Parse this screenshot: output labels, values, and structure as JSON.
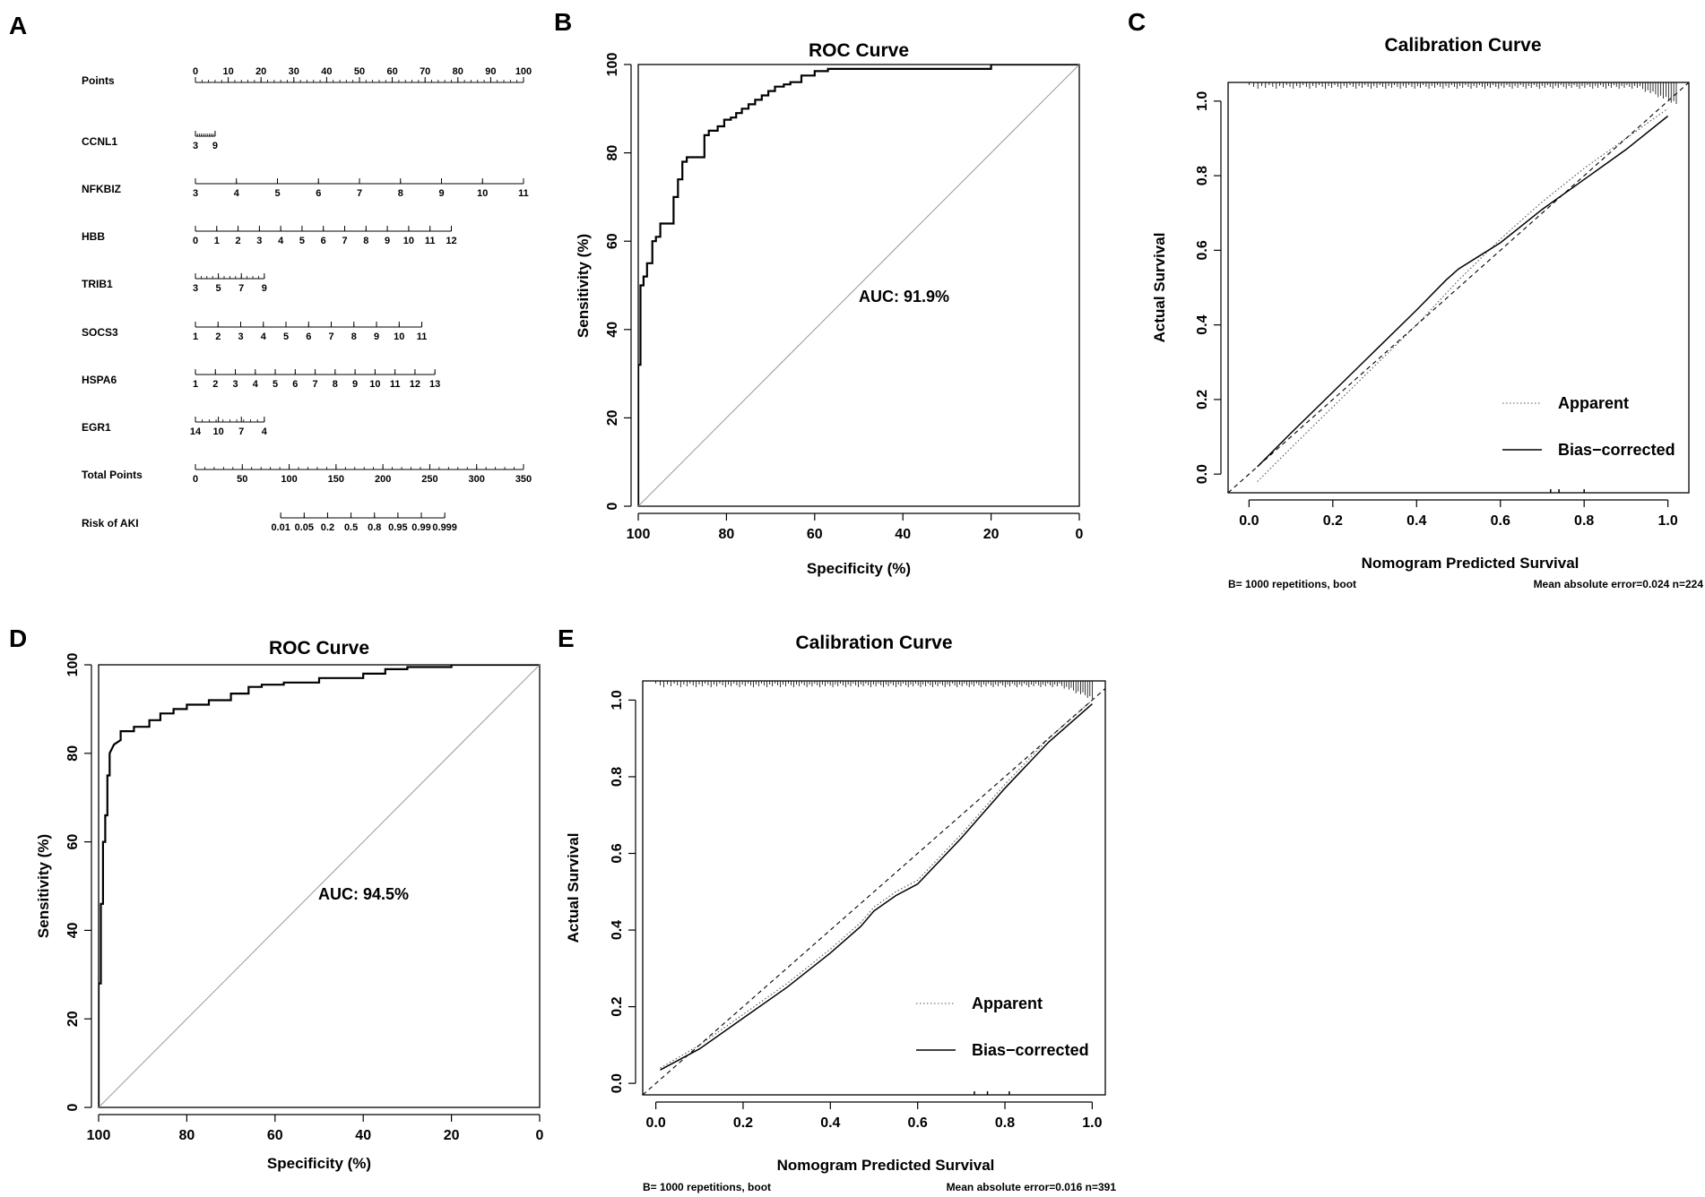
{
  "panels": {
    "A": {
      "label": "A"
    },
    "B": {
      "label": "B"
    },
    "C": {
      "label": "C"
    },
    "D": {
      "label": "D"
    },
    "E": {
      "label": "E"
    }
  },
  "chart_data": [
    {
      "type": "nomogram",
      "panel": "A",
      "rows": [
        {
          "name": "Points",
          "labels": [
            "0",
            "10",
            "20",
            "30",
            "40",
            "50",
            "60",
            "70",
            "80",
            "90",
            "100"
          ],
          "start": 0,
          "end": 100,
          "minor": 50
        },
        {
          "name": "CCNL1",
          "labels": [
            "3",
            "9"
          ],
          "start": 0,
          "end": 6,
          "minor": 10
        },
        {
          "name": "NFKBIZ",
          "labels": [
            "3",
            "4",
            "5",
            "6",
            "7",
            "8",
            "9",
            "10",
            "11"
          ],
          "start": 0,
          "end": 100,
          "minor": 8
        },
        {
          "name": "HBB",
          "labels": [
            "0",
            "1",
            "2",
            "3",
            "4",
            "5",
            "6",
            "7",
            "8",
            "9",
            "10",
            "11",
            "12"
          ],
          "start": 0,
          "end": 78,
          "minor": 12
        },
        {
          "name": "TRIB1",
          "labels": [
            "3",
            "5",
            "7",
            "9"
          ],
          "start": 0,
          "end": 21,
          "minor": 12
        },
        {
          "name": "SOCS3",
          "labels": [
            "1",
            "2",
            "3",
            "4",
            "5",
            "6",
            "7",
            "8",
            "9",
            "10",
            "11"
          ],
          "start": 0,
          "end": 69,
          "minor": 10
        },
        {
          "name": "HSPA6",
          "labels": [
            "1",
            "2",
            "3",
            "4",
            "5",
            "6",
            "7",
            "8",
            "9",
            "10",
            "11",
            "12",
            "13"
          ],
          "start": 0,
          "end": 73,
          "minor": 12
        },
        {
          "name": "EGR1",
          "labels": [
            "14",
            "10",
            "7",
            "4"
          ],
          "start": 0,
          "end": 21,
          "minor": 10
        },
        {
          "name": "Total Points",
          "labels": [
            "0",
            "50",
            "100",
            "150",
            "200",
            "250",
            "300",
            "350"
          ],
          "start": 0,
          "end": 100,
          "minor": 35
        },
        {
          "name": "Risk of AKI",
          "labels": [
            "0.01",
            "0.05",
            "0.2",
            "0.5",
            "0.8",
            "0.95",
            "0.99",
            "0.999"
          ],
          "start": 26,
          "end": 76,
          "minor": 7
        }
      ]
    },
    {
      "type": "line",
      "panel": "B",
      "title": "ROC Curve",
      "xlabel": "Specificity (%)",
      "ylabel": "Sensitivity (%)",
      "xlim": [
        100,
        0
      ],
      "ylim": [
        0,
        100
      ],
      "xticks": [
        "100",
        "80",
        "60",
        "40",
        "20",
        "0"
      ],
      "yticks": [
        "0",
        "20",
        "40",
        "60",
        "80",
        "100"
      ],
      "annotation": "AUC: 91.9%",
      "series": [
        {
          "name": "ROC",
          "x": [
            100,
            100,
            99.5,
            99.5,
            98.8,
            98.8,
            98,
            98,
            96.8,
            96.8,
            96,
            96,
            95,
            95,
            93.8,
            93.8,
            92,
            92,
            91,
            91,
            90,
            90,
            89,
            89,
            87.5,
            87.5,
            85,
            85,
            84,
            84,
            82,
            82,
            80.5,
            80.5,
            79,
            79,
            77.8,
            77.8,
            76.5,
            76.5,
            75,
            75,
            73.5,
            73.5,
            72,
            72,
            70.5,
            70.5,
            69,
            69,
            67,
            67,
            65.5,
            65.5,
            63,
            63,
            60,
            60,
            57,
            57,
            52,
            52,
            20,
            20,
            0
          ],
          "y": [
            0,
            32,
            32,
            50,
            50,
            52,
            52,
            55,
            55,
            60,
            60,
            61,
            61,
            64,
            64,
            64,
            64,
            70,
            70,
            74,
            74,
            78,
            78,
            79,
            79,
            79,
            79,
            84,
            84,
            85,
            85,
            86,
            86,
            87.5,
            87.5,
            88,
            88,
            89,
            89,
            90,
            90,
            91,
            91,
            92,
            92,
            93,
            93,
            94,
            94,
            95,
            95,
            95.5,
            95.5,
            96,
            96,
            97.5,
            97.5,
            98.5,
            98.5,
            99,
            99,
            99,
            99,
            100,
            100
          ]
        },
        {
          "name": "diagonal",
          "x": [
            100,
            0
          ],
          "y": [
            0,
            100
          ]
        }
      ]
    },
    {
      "type": "line",
      "panel": "C",
      "title": "Calibration Curve",
      "xlabel": "Nomogram Predicted Survival",
      "ylabel": "Actual Survival",
      "xlim": [
        -0.05,
        1.05
      ],
      "ylim": [
        -0.05,
        1.05
      ],
      "xticks": [
        "0.0",
        "0.2",
        "0.4",
        "0.6",
        "0.8",
        "1.0"
      ],
      "yticks": [
        "0.0",
        "0.2",
        "0.4",
        "0.6",
        "0.8",
        "1.0"
      ],
      "legend": [
        "Apparent",
        "Bias−corrected"
      ],
      "footer_left": "B= 1000 repetitions, boot",
      "footer_right": "Mean absolute error=0.024 n=224",
      "series": [
        {
          "name": "Apparent",
          "x": [
            0.02,
            0.1,
            0.2,
            0.3,
            0.4,
            0.5,
            0.6,
            0.7,
            0.8,
            0.9,
            1.0
          ],
          "y": [
            -0.02,
            0.07,
            0.18,
            0.29,
            0.4,
            0.52,
            0.63,
            0.73,
            0.82,
            0.9,
            0.98
          ]
        },
        {
          "name": "Bias−corrected",
          "x": [
            0.02,
            0.1,
            0.2,
            0.3,
            0.4,
            0.47,
            0.5,
            0.6,
            0.7,
            0.8,
            0.9,
            1.0
          ],
          "y": [
            0.02,
            0.11,
            0.22,
            0.33,
            0.44,
            0.52,
            0.55,
            0.62,
            0.71,
            0.79,
            0.87,
            0.96
          ]
        },
        {
          "name": "Ideal",
          "x": [
            -0.05,
            1.05
          ],
          "y": [
            -0.05,
            1.05
          ]
        }
      ]
    },
    {
      "type": "line",
      "panel": "D",
      "title": "ROC Curve",
      "xlabel": "Specificity (%)",
      "ylabel": "Sensitivity (%)",
      "xlim": [
        100,
        0
      ],
      "ylim": [
        0,
        100
      ],
      "xticks": [
        "100",
        "80",
        "60",
        "40",
        "20",
        "0"
      ],
      "yticks": [
        "0",
        "20",
        "40",
        "60",
        "80",
        "100"
      ],
      "annotation": "AUC: 94.5%",
      "series": [
        {
          "name": "ROC",
          "x": [
            100,
            100,
            99.5,
            99.5,
            99,
            99,
            98.5,
            98.5,
            98,
            98,
            97.5,
            97.5,
            96.5,
            95,
            95,
            92,
            92,
            88.5,
            88.5,
            86,
            86,
            83,
            83,
            80,
            80,
            75,
            75,
            70,
            70,
            66,
            66,
            63,
            63,
            58,
            58,
            50,
            50,
            40,
            40,
            35,
            35,
            30,
            30,
            20,
            20,
            0
          ],
          "y": [
            0,
            28,
            28,
            46,
            46,
            60,
            60,
            66,
            66,
            75,
            75,
            80,
            82,
            83,
            85,
            85,
            86,
            86,
            87.5,
            87.5,
            89,
            89,
            90,
            90,
            91,
            91,
            92,
            92,
            93.5,
            93.5,
            95,
            95,
            95.5,
            95.5,
            96,
            96,
            97,
            97,
            98,
            98,
            99,
            99,
            99.5,
            99.5,
            100,
            100
          ]
        },
        {
          "name": "diagonal",
          "x": [
            100,
            0
          ],
          "y": [
            0,
            100
          ]
        }
      ]
    },
    {
      "type": "line",
      "panel": "E",
      "title": "Calibration Curve",
      "xlabel": "Nomogram Predicted Survival",
      "ylabel": "Actual Survival",
      "xlim": [
        -0.03,
        1.03
      ],
      "ylim": [
        -0.03,
        1.05
      ],
      "xticks": [
        "0.0",
        "0.2",
        "0.4",
        "0.6",
        "0.8",
        "1.0"
      ],
      "yticks": [
        "0.0",
        "0.2",
        "0.4",
        "0.6",
        "0.8",
        "1.0"
      ],
      "legend": [
        "Apparent",
        "Bias−corrected"
      ],
      "footer_left": "B= 1000 repetitions, boot",
      "footer_right": "Mean absolute error=0.016 n=391",
      "series": [
        {
          "name": "Apparent",
          "x": [
            0.01,
            0.1,
            0.2,
            0.3,
            0.4,
            0.47,
            0.5,
            0.55,
            0.6,
            0.7,
            0.8,
            0.9,
            1.0
          ],
          "y": [
            0.04,
            0.1,
            0.18,
            0.26,
            0.35,
            0.42,
            0.46,
            0.5,
            0.53,
            0.65,
            0.78,
            0.9,
            1.0
          ]
        },
        {
          "name": "Bias−corrected",
          "x": [
            0.01,
            0.1,
            0.2,
            0.3,
            0.4,
            0.47,
            0.5,
            0.55,
            0.6,
            0.7,
            0.8,
            0.9,
            1.0
          ],
          "y": [
            0.035,
            0.09,
            0.17,
            0.25,
            0.34,
            0.41,
            0.45,
            0.49,
            0.52,
            0.64,
            0.77,
            0.89,
            0.99
          ]
        },
        {
          "name": "Ideal",
          "x": [
            -0.03,
            1.05
          ],
          "y": [
            -0.03,
            1.05
          ]
        }
      ]
    }
  ]
}
